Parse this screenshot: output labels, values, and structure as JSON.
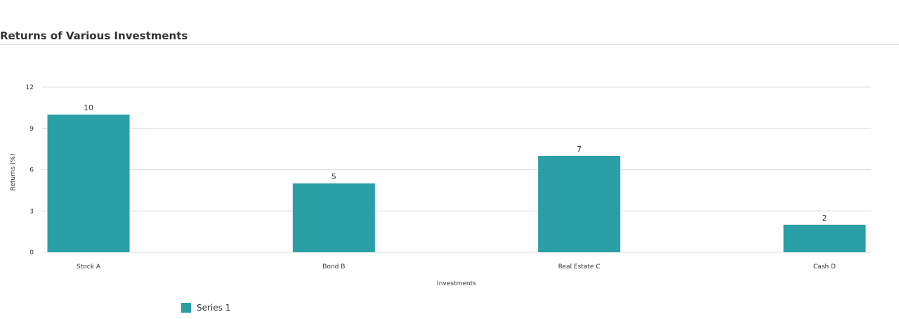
{
  "chart_data": {
    "type": "bar",
    "title": "Returns of Various Investments",
    "xlabel": "Investments",
    "ylabel": "Returns (%)",
    "categories": [
      "Stock A",
      "Bond B",
      "Real Estate C",
      "Cash D"
    ],
    "series": [
      {
        "name": "Series 1",
        "values": [
          10,
          5,
          7,
          2
        ]
      }
    ],
    "ylim": [
      0,
      12
    ],
    "yticks": [
      0,
      3,
      6,
      9,
      12
    ],
    "grid": true,
    "legend_position": "bottom-left",
    "colors": {
      "bar": "#2a9fa6",
      "grid": "#dcdcdc",
      "text": "#333333"
    }
  }
}
